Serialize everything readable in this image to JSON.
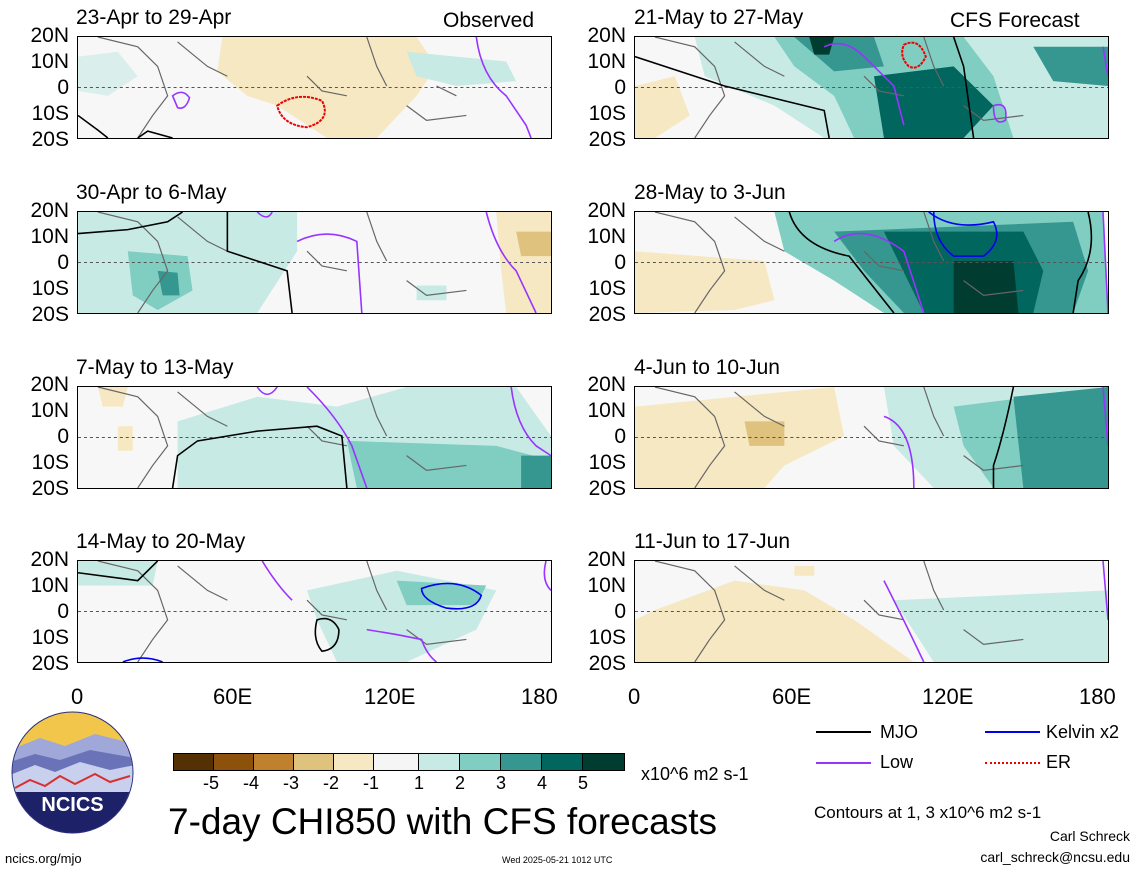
{
  "panels": [
    {
      "title": "23-Apr to 29-Apr",
      "tag": "Observed"
    },
    {
      "title": "30-Apr to 6-May",
      "tag": ""
    },
    {
      "title": "7-May to 13-May",
      "tag": ""
    },
    {
      "title": "14-May to 20-May",
      "tag": ""
    },
    {
      "title": "21-May to 27-May",
      "tag": "CFS Forecast"
    },
    {
      "title": "28-May to 3-Jun",
      "tag": ""
    },
    {
      "title": "4-Jun to 10-Jun",
      "tag": ""
    },
    {
      "title": "11-Jun to 17-Jun",
      "tag": ""
    }
  ],
  "lat_labels": [
    "20N",
    "10N",
    "0",
    "10S",
    "20S"
  ],
  "lon_labels": [
    "0",
    "60E",
    "120E",
    "180"
  ],
  "colorbar": {
    "labels": [
      "-5",
      "-4",
      "-3",
      "-2",
      "-1",
      "1",
      "2",
      "3",
      "4",
      "5"
    ],
    "colors": [
      "#543005",
      "#8c510a",
      "#bf812d",
      "#dfc27d",
      "#f6e8c3",
      "#f5f5f5",
      "#c7eae5",
      "#80cdc1",
      "#35978f",
      "#01665e",
      "#003c30"
    ],
    "units": "x10^6 m2 s-1"
  },
  "legend": {
    "items": [
      {
        "label": "MJO",
        "color": "#000000",
        "style": "solid"
      },
      {
        "label": "Kelvin x2",
        "color": "#0000ee",
        "style": "solid"
      },
      {
        "label": "Low",
        "color": "#9933ff",
        "style": "solid"
      },
      {
        "label": "ER",
        "color": "#ee0000",
        "style": "dotted"
      }
    ],
    "contour_note": "Contours at 1, 3 x10^6 m2 s-1"
  },
  "main_title": "7-day CHI850 with CFS forecasts",
  "logo_text": "NCICS",
  "site": "ncics.org/mjo",
  "timestamp": "Wed 2025-05-21 1012 UTC",
  "author": "Carl Schreck",
  "email": "carl_schreck@ncsu.edu"
}
